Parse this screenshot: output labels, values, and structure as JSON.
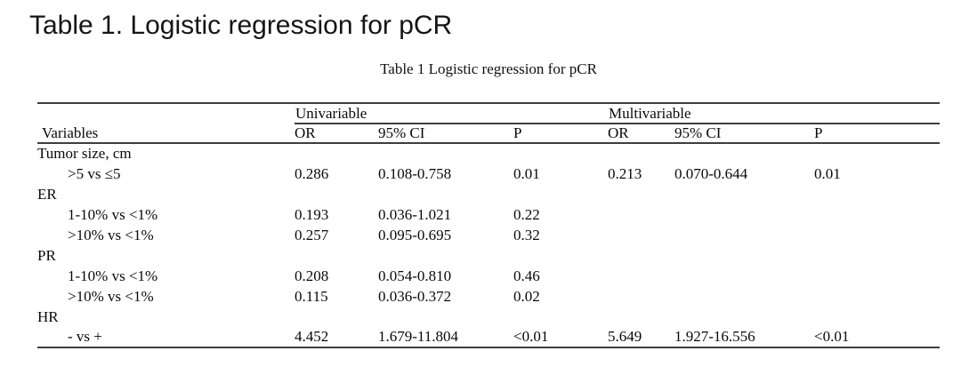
{
  "page": {
    "title": "Table 1. Logistic regression for pCR"
  },
  "table": {
    "caption": "Table 1 Logistic regression for pCR",
    "group_headers": {
      "univariable": "Univariable",
      "multivariable": "Multivariable"
    },
    "columns": [
      "Variables",
      "OR",
      "95% CI",
      "P",
      "OR",
      "95% CI",
      "P"
    ],
    "rows": [
      {
        "label": "Tumor size, cm",
        "indent": false,
        "values": [
          "",
          "",
          "",
          "",
          "",
          ""
        ]
      },
      {
        "label": ">5 vs ≤5",
        "indent": true,
        "values": [
          "0.286",
          "0.108-0.758",
          "0.01",
          "0.213",
          "0.070-0.644",
          "0.01"
        ]
      },
      {
        "label": "ER",
        "indent": false,
        "values": [
          "",
          "",
          "",
          "",
          "",
          ""
        ]
      },
      {
        "label": "1-10% vs <1%",
        "indent": true,
        "values": [
          "0.193",
          "0.036-1.021",
          "0.22",
          "",
          "",
          ""
        ]
      },
      {
        "label": ">10% vs <1%",
        "indent": true,
        "values": [
          "0.257",
          "0.095-0.695",
          "0.32",
          "",
          "",
          ""
        ]
      },
      {
        "label": "PR",
        "indent": false,
        "values": [
          "",
          "",
          "",
          "",
          "",
          ""
        ]
      },
      {
        "label": "1-10% vs <1%",
        "indent": true,
        "values": [
          "0.208",
          "0.054-0.810",
          "0.46",
          "",
          "",
          ""
        ]
      },
      {
        "label": ">10% vs <1%",
        "indent": true,
        "values": [
          "0.115",
          "0.036-0.372",
          "0.02",
          "",
          "",
          ""
        ]
      },
      {
        "label": "HR",
        "indent": false,
        "values": [
          "",
          "",
          "",
          "",
          "",
          ""
        ]
      },
      {
        "label": "- vs +",
        "indent": true,
        "values": [
          "4.452",
          "1.679-11.804",
          "<0.01",
          "5.649",
          "1.927-16.556",
          "<0.01"
        ]
      }
    ]
  }
}
